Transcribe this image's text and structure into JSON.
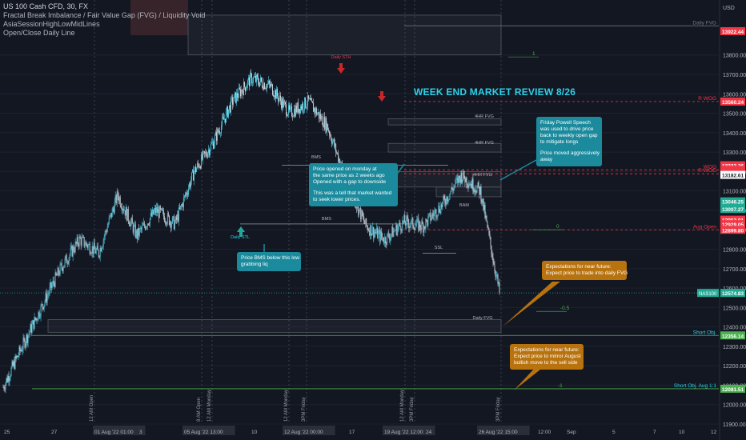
{
  "header": {
    "symbol": "US 100 Cash CFD, 30, FX",
    "indicators": [
      "Fractal Break Imbalance / Fair Value Gap (FVG) / Liquidity Void",
      "AsiaSessionHighLowMidLines",
      "Open/Close Daily Line"
    ]
  },
  "chart_data": {
    "type": "candlestick",
    "title": "WEEK END MARKET REVIEW 8/26",
    "currency": "USD",
    "ylim": [
      11900,
      14050
    ],
    "y_ticks": [
      11900,
      12000,
      12100,
      12200,
      12300,
      12400,
      12500,
      12600,
      12700,
      12800,
      12900,
      13000,
      13100,
      13200,
      13300,
      13400,
      13500,
      13600,
      13700,
      13800
    ],
    "x_ticks": [
      "25",
      "27",
      "01 Aug '22 01:00",
      "3",
      "05 Aug '22 13:00",
      "10",
      "12 Aug '22 00:00",
      "17",
      "19 Aug '22 12:00",
      "24",
      "26 Aug '22 15:00",
      "12:00",
      "Sep",
      "5",
      "7",
      "10",
      "12"
    ],
    "series": [
      {
        "name": "NAS100",
        "last": 12574.83,
        "close_path": [
          12090,
          12300,
          12500,
          12700,
          12850,
          12780,
          13080,
          12870,
          13000,
          12930,
          13200,
          13350,
          13560,
          13680,
          13640,
          13500,
          13560,
          13430,
          13150,
          12920,
          12850,
          12940,
          12920,
          13030,
          13180,
          13100,
          12574.83
        ]
      }
    ],
    "levels": [
      {
        "label": "Daily FVG",
        "value": 13950
      },
      {
        "label": "R WOG",
        "value": 13560.24
      },
      {
        "label": "WOG",
        "value": 13208.43
      },
      {
        "label": "R WOG",
        "value": 13188.48
      },
      {
        "label": "Aug Open",
        "value": 12899.8
      },
      {
        "label": "Short Obj.",
        "value": 12356.14
      },
      {
        "label": "Short Obj. Aug 1:1",
        "value": 12081.51
      }
    ],
    "price_tags": [
      {
        "value": 13922.44,
        "color": "#f23645"
      },
      {
        "value": 13560.24,
        "color": "#f23645"
      },
      {
        "value": 13232.26,
        "color": "#f23645"
      },
      {
        "value": 13208.43,
        "color": "#f23645"
      },
      {
        "value": 13200.75,
        "color": "#f23645"
      },
      {
        "value": 13188.48,
        "color": "#f23645"
      },
      {
        "value": 13182.61,
        "color": "#ffffff"
      },
      {
        "value": 13046.25,
        "color": "#22ab94"
      },
      {
        "value": 13007.27,
        "color": "#22ab94"
      },
      {
        "value": 12952.01,
        "color": "#f23645"
      },
      {
        "value": 12929.05,
        "color": "#f23645"
      },
      {
        "value": 12899.8,
        "color": "#f23645"
      },
      {
        "value": 12574.83,
        "color": "#22ab94"
      },
      {
        "value": 12356.14,
        "color": "#4caf50"
      },
      {
        "value": 12081.51,
        "color": "#4caf50"
      }
    ],
    "fib_labels": [
      "1",
      "0",
      "-0.5",
      "-1"
    ],
    "chart_labels": [
      "Daily STH",
      "Daily STL",
      "BMS",
      "BMS",
      "4HR FVG",
      "4HR FVG",
      "4HR FVG",
      "Daily FVG",
      "SSL",
      "BAM",
      "12 AM Open",
      "8 AM Open",
      "12 AM Monday",
      "3PM Friday",
      "12 AM Monday",
      "3PM Friday",
      "12 AM Monday",
      "3PM Friday"
    ],
    "annotations": [
      {
        "lines": [
          "Price opened on monday at",
          "the same price as 2 weeks ago",
          "Opened with a gap to downside",
          "",
          "This was a tell that market wanted",
          "to seek lower prices."
        ]
      },
      {
        "lines": [
          "Friday Powell Speech",
          "was used to drive price",
          "back to weekly open gap",
          "to mitigate longs",
          "",
          "Price moved aggressively",
          "away"
        ]
      },
      {
        "lines": [
          "Price BMS below this low",
          "grabbing liq"
        ]
      },
      {
        "lines": [
          "Expectations for near future:",
          "Expect price to trade into daily FVG"
        ]
      },
      {
        "lines": [
          "Expectations for near future:",
          "Expect price to mirror August",
          "bullish move to the sell side"
        ]
      }
    ],
    "colors": {
      "up": "#4fc3d9",
      "down": "#d1d4dc",
      "bg": "#131722",
      "accent": "#2fd0e8",
      "teal_note": "#1a8a9c",
      "orange_note": "#b8730f"
    }
  }
}
